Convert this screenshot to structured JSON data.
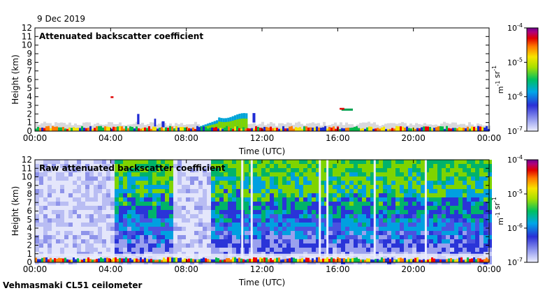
{
  "date": "9 Dec 2019",
  "footer": "Vehmasmaki CL51 ceilometer",
  "chart_data": [
    {
      "type": "heatmap",
      "title": "Attenuated backscatter coefficient",
      "xlabel": "Time (UTC)",
      "ylabel": "Height (km)",
      "xticks": [
        "00:00",
        "04:00",
        "08:00",
        "12:00",
        "16:00",
        "20:00",
        "00:00"
      ],
      "xlim": [
        0,
        24
      ],
      "yticks": [
        0,
        1,
        2,
        3,
        4,
        5,
        6,
        7,
        8,
        9,
        10,
        11,
        12
      ],
      "ylim": [
        0,
        12
      ],
      "colorbar": {
        "scale": "log",
        "range": [
          1e-07,
          0.0001
        ],
        "ticks": [
          "10",
          "10",
          "10",
          "10"
        ],
        "exponents": [
          "-7",
          "-6",
          "-5",
          "-4"
        ],
        "unit": "m-1 sr-1"
      }
    },
    {
      "type": "heatmap",
      "title": "Raw attenuated backscatter coefficient",
      "xlabel": "Time (UTC)",
      "ylabel": "Height (km)",
      "xticks": [
        "00:00",
        "04:00",
        "08:00",
        "12:00",
        "16:00",
        "20:00",
        "00:00"
      ],
      "xlim": [
        0,
        24
      ],
      "yticks": [
        0,
        1,
        2,
        3,
        4,
        5,
        6,
        7,
        8,
        9,
        10,
        11,
        12
      ],
      "ylim": [
        0,
        12
      ],
      "colorbar": {
        "scale": "log",
        "range": [
          1e-07,
          0.0001
        ],
        "ticks": [
          "10",
          "10",
          "10",
          "10"
        ],
        "exponents": [
          "-7",
          "-6",
          "-5",
          "-4"
        ],
        "unit": "m-1 sr-1"
      }
    }
  ]
}
